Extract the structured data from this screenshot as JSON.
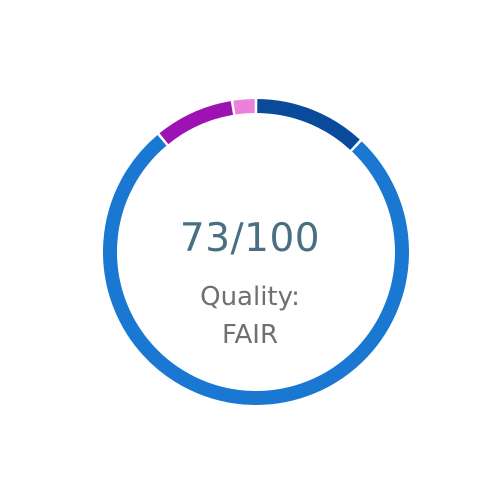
{
  "gauge": {
    "score_text": "73/100",
    "quality_label": "Quality:",
    "quality_value": "FAIR",
    "segments": [
      {
        "name": "dark-blue",
        "color": "#0a4a9a",
        "fraction": 0.12
      },
      {
        "name": "blue",
        "color": "#1a78d2",
        "fraction": 0.77
      },
      {
        "name": "purple",
        "color": "#9c12b2",
        "fraction": 0.085
      },
      {
        "name": "pink",
        "color": "#ea82dc",
        "fraction": 0.025
      }
    ]
  }
}
